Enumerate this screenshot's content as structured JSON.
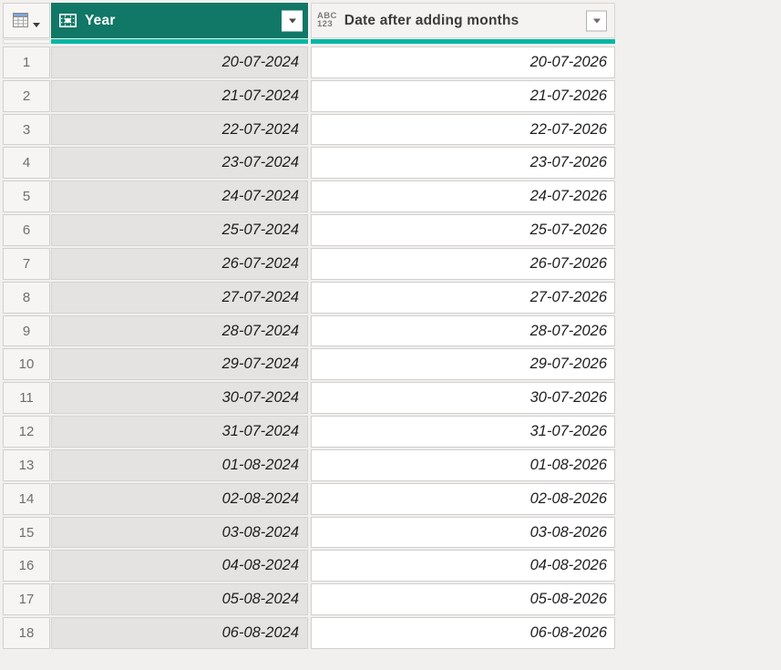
{
  "app": {
    "name": "Power Query data preview grid"
  },
  "colors": {
    "page_bg": "#f1f0ef",
    "selected_header_bg": "#117766",
    "quality_bar_teal": "#00b7a3",
    "selected_column_cell_bg": "#e4e3e2",
    "unselected_header_bg": "#f4f3f2",
    "header_text_selected": "#ffffff",
    "header_text": "#3c3b39",
    "cell_text": "#1f1e1d",
    "row_number_text": "#6f6e6c",
    "border": "#d2d0ce"
  },
  "table": {
    "columns": [
      {
        "name": "Year",
        "type_icon": "date-grid-icon",
        "selected": true
      },
      {
        "name": "Date after adding months",
        "type_icon": "abc-123-any-type-icon",
        "icon_lines": [
          "ABC",
          "123"
        ],
        "selected": false
      }
    ],
    "rows": [
      {
        "n": "1",
        "year": "20-07-2024",
        "date": "20-07-2026"
      },
      {
        "n": "2",
        "year": "21-07-2024",
        "date": "21-07-2026"
      },
      {
        "n": "3",
        "year": "22-07-2024",
        "date": "22-07-2026"
      },
      {
        "n": "4",
        "year": "23-07-2024",
        "date": "23-07-2026"
      },
      {
        "n": "5",
        "year": "24-07-2024",
        "date": "24-07-2026"
      },
      {
        "n": "6",
        "year": "25-07-2024",
        "date": "25-07-2026"
      },
      {
        "n": "7",
        "year": "26-07-2024",
        "date": "26-07-2026"
      },
      {
        "n": "8",
        "year": "27-07-2024",
        "date": "27-07-2026"
      },
      {
        "n": "9",
        "year": "28-07-2024",
        "date": "28-07-2026"
      },
      {
        "n": "10",
        "year": "29-07-2024",
        "date": "29-07-2026"
      },
      {
        "n": "11",
        "year": "30-07-2024",
        "date": "30-07-2026"
      },
      {
        "n": "12",
        "year": "31-07-2024",
        "date": "31-07-2026"
      },
      {
        "n": "13",
        "year": "01-08-2024",
        "date": "01-08-2026"
      },
      {
        "n": "14",
        "year": "02-08-2024",
        "date": "02-08-2026"
      },
      {
        "n": "15",
        "year": "03-08-2024",
        "date": "03-08-2026"
      },
      {
        "n": "16",
        "year": "04-08-2024",
        "date": "04-08-2026"
      },
      {
        "n": "17",
        "year": "05-08-2024",
        "date": "05-08-2026"
      },
      {
        "n": "18",
        "year": "06-08-2024",
        "date": "06-08-2026"
      }
    ]
  }
}
